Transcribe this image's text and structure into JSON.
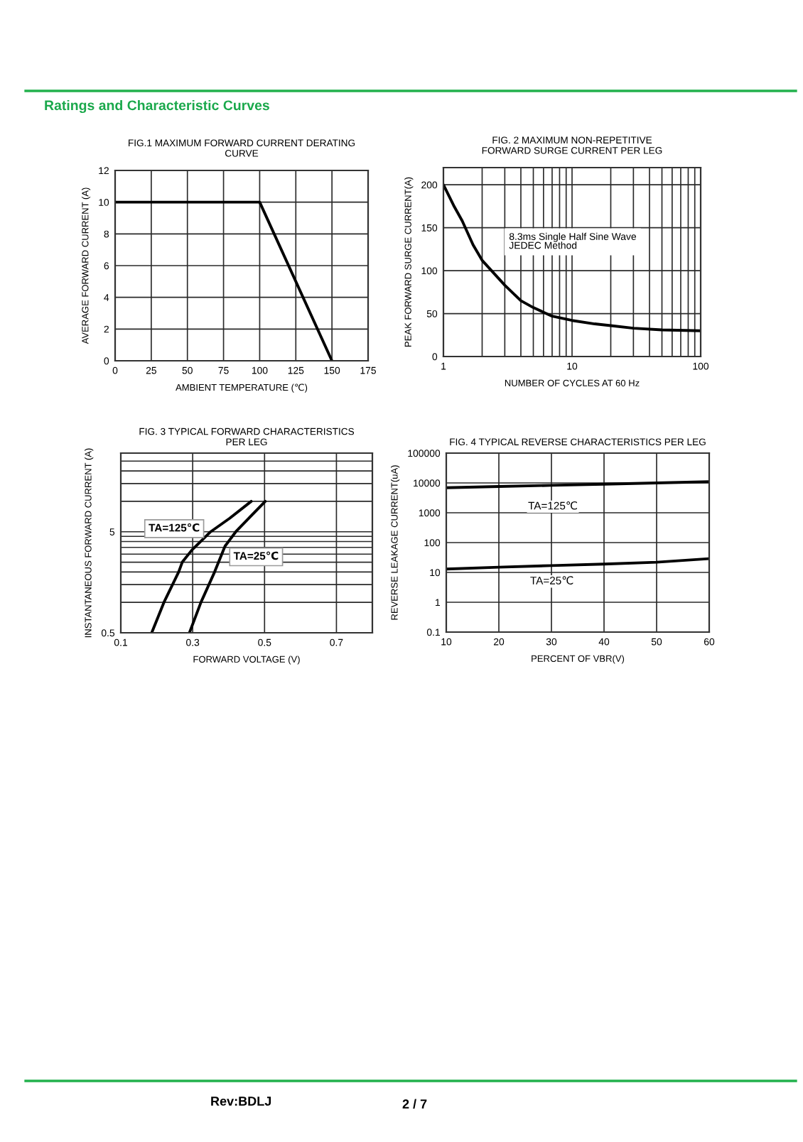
{
  "chart_data": [
    {
      "type": "line",
      "title": "FIG.1 MAXIMUM FORWARD CURRENT DERATING\nCURVE",
      "xlabel": "AMBIENT TEMPERATURE (℃)",
      "ylabel": "AVERAGE FORWARD CURRENT (A)",
      "x": [
        0,
        100,
        150
      ],
      "series": [
        {
          "color": "#000000",
          "values": [
            10,
            10,
            0
          ]
        }
      ],
      "xlim": [
        0,
        175
      ],
      "ylim": [
        0,
        12
      ],
      "xticks": [
        0,
        25,
        50,
        75,
        100,
        125,
        150,
        175
      ],
      "yticks": [
        0,
        2,
        4,
        6,
        8,
        10,
        12
      ],
      "grid": true,
      "annotations": [
        "Ratings and Characteristic Curves",
        "Rev:BDLJ",
        "2 / 7"
      ]
    },
    {
      "type": "line",
      "title": "FIG. 2 MAXIMUM NON-REPETITIVE\nFORWARD SURGE CURRENT PER LEG",
      "xlabel": "NUMBER OF CYCLES AT 60 Hz",
      "ylabel": "PEAK FORWARD SURGE CURRENT(A)",
      "x": [
        1,
        1.2,
        1.4,
        1.7,
        2,
        2.5,
        3,
        4,
        5,
        7,
        10,
        15,
        20,
        30,
        50,
        100
      ],
      "series": [
        {
          "color": "#000000",
          "values": [
            200,
            176,
            158,
            130,
            112,
            96,
            83,
            65,
            57,
            47,
            42,
            38,
            36,
            33,
            31,
            30
          ]
        }
      ],
      "log": "x",
      "xlim": [
        1,
        100
      ],
      "ylim": [
        0,
        220
      ],
      "xticks": [
        1,
        {
          "value": 2,
          "label": null
        },
        {
          "value": 3,
          "label": null
        },
        {
          "value": 4,
          "label": null
        },
        {
          "value": 5,
          "label": null
        },
        {
          "value": 6,
          "label": null
        },
        {
          "value": 7,
          "label": null
        },
        {
          "value": 8,
          "label": null
        },
        {
          "value": 9,
          "label": null
        },
        10,
        {
          "value": 20,
          "label": null
        },
        {
          "value": 30,
          "label": null
        },
        {
          "value": 40,
          "label": null
        },
        {
          "value": 50,
          "label": null
        },
        {
          "value": 60,
          "label": null
        },
        {
          "value": 70,
          "label": null
        },
        {
          "value": 80,
          "label": null
        },
        {
          "value": 90,
          "label": null
        },
        100
      ],
      "yticks": [
        0,
        50,
        100,
        150,
        200
      ],
      "grid": true,
      "annotations": [
        "8.3ms Single Half Sine Wave\nJEDEC Method"
      ]
    },
    {
      "type": "line",
      "title": "FIG. 3 TYPICAL FORWARD CHARACTERISTICS\nPER LEG",
      "xlabel": "FORWARD VOLTAGE (V)",
      "ylabel": "INSTANTANEOUS FORWARD CURRENT (A)",
      "series": [
        {
          "name": "TA=125℃",
          "color": "#000000",
          "x": [
            0.186,
            0.22,
            0.261,
            0.271,
            0.298,
            0.35,
            0.403,
            0.463
          ],
          "values": [
            0.5,
            1.0,
            2.0,
            2.5,
            3.3,
            5,
            6.8,
            10
          ]
        },
        {
          "name": "TA=25℃",
          "color": "#000000",
          "x": [
            0.291,
            0.323,
            0.361,
            0.39,
            0.42,
            0.463,
            0.502
          ],
          "values": [
            0.5,
            1.0,
            2.0,
            3.6,
            5,
            7.2,
            10
          ]
        }
      ],
      "log": "y",
      "xlim": [
        0.1,
        0.8
      ],
      "ylim": [
        0.5,
        30
      ],
      "xticks": [
        0.1,
        0.3,
        0.5,
        0.7
      ],
      "yticks": [
        0.5,
        {
          "value": 1,
          "label": null
        },
        {
          "value": 1.5,
          "label": null
        },
        {
          "value": 2,
          "label": null
        },
        {
          "value": 2.5,
          "label": null
        },
        {
          "value": 3,
          "label": null
        },
        {
          "value": 3.5,
          "label": null
        },
        {
          "value": 4,
          "label": null
        },
        {
          "value": 4.5,
          "label": null
        },
        5,
        {
          "value": 10,
          "label": null
        },
        {
          "value": 15,
          "label": null
        },
        {
          "value": 20,
          "label": null
        },
        {
          "value": 25,
          "label": null
        }
      ],
      "grid": true
    },
    {
      "type": "line",
      "title": "FIG. 4 TYPICAL REVERSE CHARACTERISTICS PER LEG",
      "xlabel": "PERCENT OF VBR(V)",
      "ylabel": "REVERSE LEAKAGE CURRENT(uA)",
      "x": [
        10,
        20,
        30,
        40,
        50,
        60
      ],
      "series": [
        {
          "name": "TA=125℃",
          "color": "#000000",
          "values": [
            6900,
            7600,
            8300,
            9100,
            10000,
            11000
          ]
        },
        {
          "name": "TA=25℃",
          "color": "#000000",
          "values": [
            13,
            15,
            17,
            19,
            22,
            29
          ]
        }
      ],
      "log": "y",
      "xlim": [
        10,
        60
      ],
      "ylim": [
        0.1,
        100000
      ],
      "xticks": [
        10,
        20,
        30,
        40,
        50,
        60
      ],
      "yticks": [
        0.1,
        1,
        10,
        100,
        1000,
        10000,
        100000
      ],
      "grid": true
    }
  ]
}
